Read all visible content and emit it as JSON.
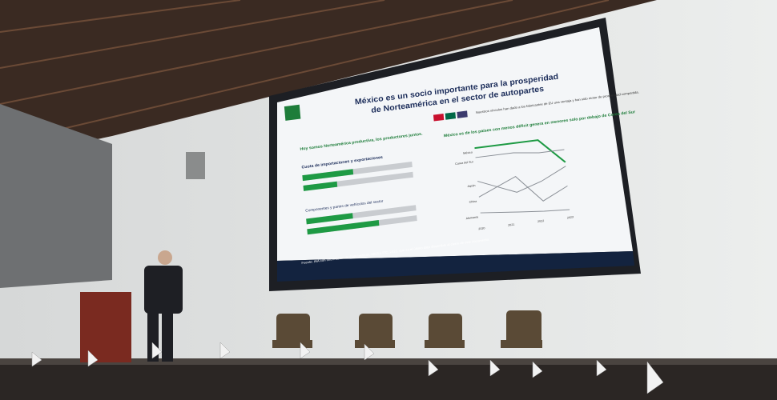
{
  "slide": {
    "title_line1": "México es un socio importante para la prosperidad",
    "title_line2": "de Norteamérica en el sector de autopartes",
    "right_note": "Nuestros vínculos han dado a los fabricantes de EU una ventaja y han sido motor de prosperidad compartida.",
    "left_heading": "Hoy somos Norteamérica productiva, los productores juntos.",
    "section_title": "Cuota de importaciones y exportaciones",
    "subsection": "Componentes y partes de vehículos del sector",
    "chart_title": "México es de los países con menos déficit genera en menores solo por debajo de Corea del Sur",
    "chart_labels": [
      "México",
      "Corea del Sur",
      "Japón",
      "China",
      "Alemania"
    ],
    "chart_x": [
      "2020",
      "2021",
      "2022",
      "2023"
    ],
    "footer": "Fuente: INA con información de CAR Instituto, 2023 e ITC, 2021, que es el último dato disponible al cierre de este documento."
  }
}
